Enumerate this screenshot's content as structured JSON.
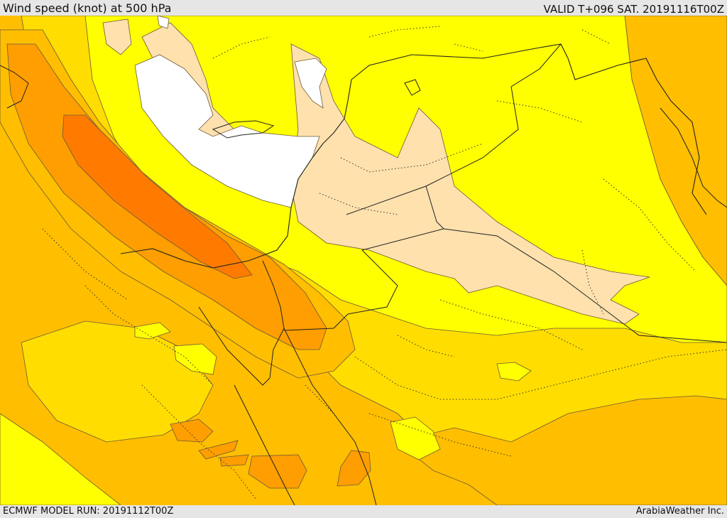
{
  "header": {
    "title": "Wind speed (knot) at 500 hPa",
    "valid": "VALID T+096 SAT. 20191116T00Z"
  },
  "footer": {
    "model_run": "ECMWF MODEL RUN: 20191112T00Z",
    "credit": "ArabiaWeather Inc."
  },
  "palette": {
    "white": "#ffffff",
    "light_peach": "#ffe1ad",
    "yellow": "#ffff00",
    "gold": "#ffdd00",
    "amber": "#ffbe00",
    "orange": "#ff9e00",
    "deep_orange": "#ff7b00",
    "contour": "#6b5a3a",
    "border": "#222222"
  }
}
